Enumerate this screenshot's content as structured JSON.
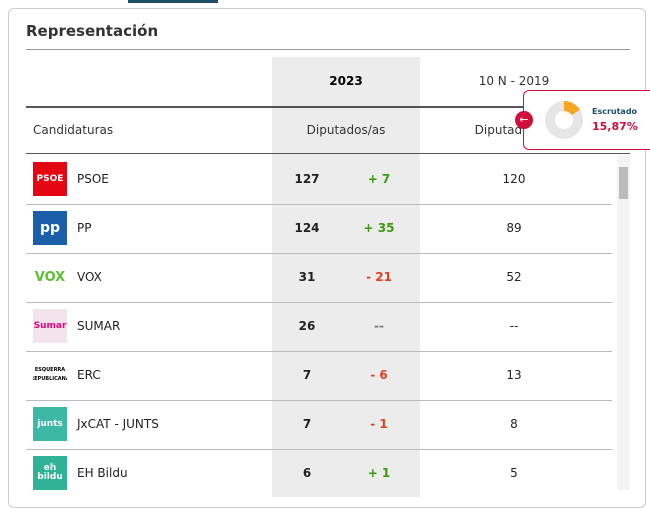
{
  "title": "Representación",
  "header": {
    "col_2023": "2023",
    "col_2019": "10 N - 2019",
    "candidates": "Candidaturas",
    "seats_2023": "Diputados/as",
    "seats_2019": "Diputados/as"
  },
  "rows": [
    {
      "logo": "PSOE",
      "name": "PSOE",
      "seats": 127,
      "diff": "+ 7",
      "seats_2019": 120
    },
    {
      "logo": "pp",
      "name": "PP",
      "seats": 124,
      "diff": "+ 35",
      "seats_2019": 89
    },
    {
      "logo": "VOX",
      "name": "VOX",
      "seats": 31,
      "diff": "- 21",
      "seats_2019": 52
    },
    {
      "logo": "Sumar",
      "name": "SUMAR",
      "seats": 26,
      "diff": "--",
      "seats_2019": "--"
    },
    {
      "logo": "ESQUERRA REPUBLICANA",
      "name": "ERC",
      "seats": 7,
      "diff": "- 6",
      "seats_2019": 13
    },
    {
      "logo": "junts",
      "name": "JxCAT - JUNTS",
      "seats": 7,
      "diff": "- 1",
      "seats_2019": 8
    },
    {
      "logo": "eh bildu",
      "name": "EH Bildu",
      "seats": 6,
      "diff": "+ 1",
      "seats_2019": 5
    }
  ],
  "popup": {
    "label": "Escrutado",
    "value": 15.87,
    "value_label": "15,87%"
  }
}
